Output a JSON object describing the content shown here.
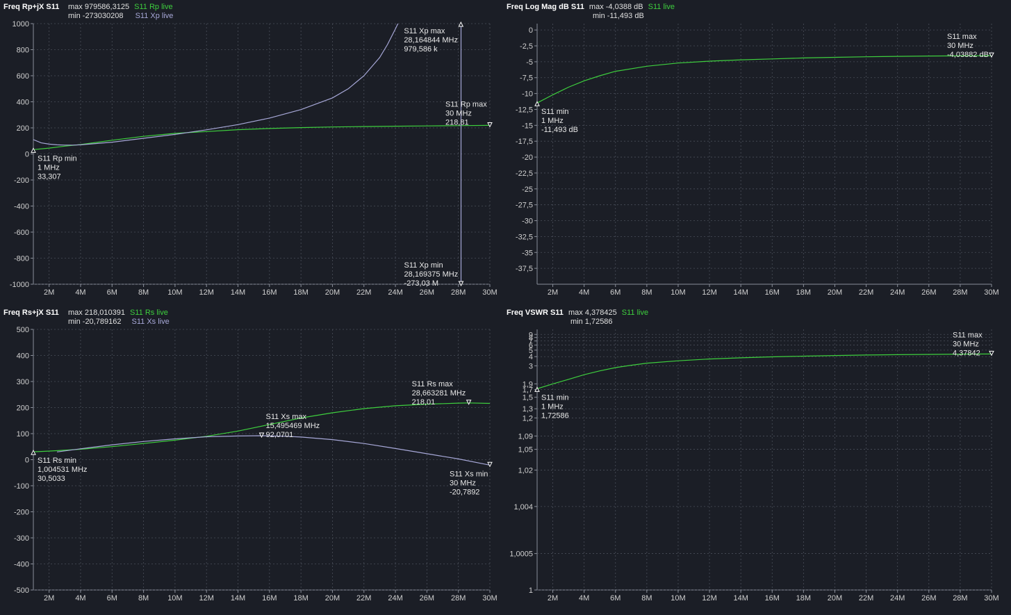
{
  "chart_data": [
    {
      "type": "line",
      "title": "Freq Rp+jX S11",
      "max_text": "max 979586,3125",
      "min_text": "min -273030208",
      "xlim": [
        1,
        30
      ],
      "ylim": [
        -1000,
        1000
      ],
      "y_ticks": [
        {
          "v": 1000,
          "l": "1000"
        },
        {
          "v": 800,
          "l": "800"
        },
        {
          "v": 600,
          "l": "600"
        },
        {
          "v": 400,
          "l": "400"
        },
        {
          "v": 200,
          "l": "200"
        },
        {
          "v": 0,
          "l": "0"
        },
        {
          "v": -200,
          "l": "-200"
        },
        {
          "v": -400,
          "l": "-400"
        },
        {
          "v": -600,
          "l": "-600"
        },
        {
          "v": -800,
          "l": "-800"
        },
        {
          "v": -1000,
          "l": "-1000"
        }
      ],
      "x_ticks": [
        {
          "v": 2,
          "l": "2M"
        },
        {
          "v": 4,
          "l": "4M"
        },
        {
          "v": 6,
          "l": "6M"
        },
        {
          "v": 8,
          "l": "8M"
        },
        {
          "v": 10,
          "l": "10M"
        },
        {
          "v": 12,
          "l": "12M"
        },
        {
          "v": 14,
          "l": "14M"
        },
        {
          "v": 16,
          "l": "16M"
        },
        {
          "v": 18,
          "l": "18M"
        },
        {
          "v": 20,
          "l": "20M"
        },
        {
          "v": 22,
          "l": "22M"
        },
        {
          "v": 24,
          "l": "24M"
        },
        {
          "v": 26,
          "l": "26M"
        },
        {
          "v": 28,
          "l": "28M"
        },
        {
          "v": 30,
          "l": "30M"
        }
      ],
      "series": [
        {
          "name": "S11 Rp live",
          "color": "#3ecf3e",
          "x": [
            1,
            2,
            3,
            4,
            6,
            8,
            10,
            12,
            14,
            16,
            18,
            20,
            22,
            24,
            26,
            28,
            30
          ],
          "y": [
            33,
            45,
            60,
            72,
            105,
            135,
            158,
            172,
            186,
            195,
            202,
            207,
            210,
            213,
            215,
            217,
            219
          ]
        },
        {
          "name": "S11 Xp live",
          "color": "#a7a8d8",
          "x": [
            1,
            1.5,
            2,
            2.5,
            3,
            3.5,
            4,
            6,
            8,
            10,
            12,
            14,
            16,
            18,
            20,
            21,
            22,
            23,
            23.5,
            24,
            24.2,
            24.4
          ],
          "y": [
            110,
            85,
            75,
            70,
            68,
            68,
            70,
            90,
            120,
            150,
            185,
            225,
            275,
            340,
            430,
            500,
            600,
            740,
            840,
            960,
            1010,
            1080
          ]
        },
        {
          "name": "",
          "color": "#a7a8d8",
          "x": [
            28.17,
            28.17
          ],
          "y": [
            -1000,
            1000
          ]
        }
      ],
      "markers": [
        {
          "label": "S11 Rp min",
          "f": "1 MHz",
          "v": "33,307",
          "x": 1,
          "y": 33,
          "dir": "up",
          "tx": 6,
          "ty": 6
        },
        {
          "label": "S11 Rp max",
          "f": "30 MHz",
          "v": "218,81",
          "x": 30,
          "y": 219,
          "dir": "down",
          "tx": -64,
          "ty": -37
        },
        {
          "label": "S11 Xp max",
          "f": "28,164844 MHz",
          "v": "979,586 k",
          "x": 28.16,
          "y": 1000,
          "dir": "up",
          "tx": -82,
          "ty": 4
        },
        {
          "label": "S11 Xp min",
          "f": "28,169375 MHz",
          "v": "-273,03 M",
          "x": 28.17,
          "y": -1000,
          "dir": "down",
          "tx": -82,
          "ty": -34
        }
      ]
    },
    {
      "type": "line",
      "title": "Freq Log Mag dB S11",
      "max_text": "max -4,0388 dB",
      "min_text": "min -11,493 dB",
      "xlim": [
        1,
        30
      ],
      "ylim": [
        -40,
        1
      ],
      "y_ticks": [
        {
          "v": 0,
          "l": "0"
        },
        {
          "v": -2.5,
          "l": "-2,5"
        },
        {
          "v": -5,
          "l": "-5"
        },
        {
          "v": -7.5,
          "l": "-7,5"
        },
        {
          "v": -10,
          "l": "-10"
        },
        {
          "v": -12.5,
          "l": "-12,5"
        },
        {
          "v": -15,
          "l": "-15"
        },
        {
          "v": -17.5,
          "l": "-17,5"
        },
        {
          "v": -20,
          "l": "-20"
        },
        {
          "v": -22.5,
          "l": "-22,5"
        },
        {
          "v": -25,
          "l": "-25"
        },
        {
          "v": -27.5,
          "l": "-27,5"
        },
        {
          "v": -30,
          "l": "-30"
        },
        {
          "v": -32.5,
          "l": "-32,5"
        },
        {
          "v": -35,
          "l": "-35"
        },
        {
          "v": -37.5,
          "l": "-37,5"
        }
      ],
      "x_ticks": [
        {
          "v": 2,
          "l": "2M"
        },
        {
          "v": 4,
          "l": "4M"
        },
        {
          "v": 6,
          "l": "6M"
        },
        {
          "v": 8,
          "l": "8M"
        },
        {
          "v": 10,
          "l": "10M"
        },
        {
          "v": 12,
          "l": "12M"
        },
        {
          "v": 14,
          "l": "14M"
        },
        {
          "v": 16,
          "l": "16M"
        },
        {
          "v": 18,
          "l": "18M"
        },
        {
          "v": 20,
          "l": "20M"
        },
        {
          "v": 22,
          "l": "22M"
        },
        {
          "v": 24,
          "l": "24M"
        },
        {
          "v": 26,
          "l": "26M"
        },
        {
          "v": 28,
          "l": "28M"
        },
        {
          "v": 30,
          "l": "30M"
        }
      ],
      "series": [
        {
          "name": "S11 live",
          "color": "#3ecf3e",
          "x": [
            1,
            2,
            3,
            4,
            5,
            6,
            8,
            10,
            12,
            14,
            16,
            18,
            20,
            22,
            24,
            26,
            28,
            30
          ],
          "y": [
            -11.49,
            -10.2,
            -9.0,
            -8.0,
            -7.2,
            -6.5,
            -5.7,
            -5.2,
            -4.9,
            -4.7,
            -4.55,
            -4.4,
            -4.3,
            -4.22,
            -4.15,
            -4.1,
            -4.07,
            -4.04
          ]
        }
      ],
      "markers": [
        {
          "label": "S11 min",
          "f": "1 MHz",
          "v": "-11,493 dB",
          "x": 1,
          "y": -11.49,
          "dir": "up",
          "tx": 6,
          "ty": 6
        },
        {
          "label": "S11 max",
          "f": "30 MHz",
          "v": "-4,03882 dB",
          "x": 30,
          "y": -4.04,
          "dir": "down",
          "tx": -64,
          "ty": -34
        }
      ]
    },
    {
      "type": "line",
      "title": "Freq Rs+jX S11",
      "max_text": "max 218,010391",
      "min_text": "min -20,789162",
      "xlim": [
        1,
        30
      ],
      "ylim": [
        -500,
        500
      ],
      "y_ticks": [
        {
          "v": 500,
          "l": "500"
        },
        {
          "v": 400,
          "l": "400"
        },
        {
          "v": 300,
          "l": "300"
        },
        {
          "v": 200,
          "l": "200"
        },
        {
          "v": 100,
          "l": "100"
        },
        {
          "v": 0,
          "l": "0"
        },
        {
          "v": -100,
          "l": "-100"
        },
        {
          "v": -200,
          "l": "-200"
        },
        {
          "v": -300,
          "l": "-300"
        },
        {
          "v": -400,
          "l": "-400"
        },
        {
          "v": -500,
          "l": "-500"
        }
      ],
      "x_ticks": [
        {
          "v": 2,
          "l": "2M"
        },
        {
          "v": 4,
          "l": "4M"
        },
        {
          "v": 6,
          "l": "6M"
        },
        {
          "v": 8,
          "l": "8M"
        },
        {
          "v": 10,
          "l": "10M"
        },
        {
          "v": 12,
          "l": "12M"
        },
        {
          "v": 14,
          "l": "14M"
        },
        {
          "v": 16,
          "l": "16M"
        },
        {
          "v": 18,
          "l": "18M"
        },
        {
          "v": 20,
          "l": "20M"
        },
        {
          "v": 22,
          "l": "22M"
        },
        {
          "v": 24,
          "l": "24M"
        },
        {
          "v": 26,
          "l": "26M"
        },
        {
          "v": 28,
          "l": "28M"
        },
        {
          "v": 30,
          "l": "30M"
        }
      ],
      "series": [
        {
          "name": "S11 Rs live",
          "color": "#3ecf3e",
          "x": [
            1,
            2,
            4,
            6,
            8,
            10,
            12,
            14,
            16,
            18,
            20,
            22,
            24,
            26,
            28,
            28.66,
            30
          ],
          "y": [
            30.5,
            33,
            40,
            50,
            62,
            75,
            90,
            110,
            135,
            160,
            180,
            196,
            207,
            213,
            217,
            218,
            216
          ]
        },
        {
          "name": "S11 Xs live",
          "color": "#a7a8d8",
          "x": [
            2.5,
            4,
            6,
            8,
            10,
            12,
            14,
            15.5,
            17,
            18,
            20,
            22,
            24,
            26,
            28,
            30
          ],
          "y": [
            30,
            42,
            57,
            70,
            80,
            88,
            91,
            92,
            90,
            87,
            77,
            62,
            43,
            23,
            3,
            -20.8
          ]
        }
      ],
      "markers": [
        {
          "label": "S11 Rs min",
          "f": "1,004531 MHz",
          "v": "30,5033",
          "x": 1,
          "y": 30.5,
          "dir": "up",
          "tx": 6,
          "ty": 6
        },
        {
          "label": "S11 Rs max",
          "f": "28,663281 MHz",
          "v": "218,01",
          "x": 28.66,
          "y": 218,
          "dir": "down",
          "tx": -82,
          "ty": -34
        },
        {
          "label": "S11 Xs max",
          "f": "15,495469 MHz",
          "v": "92,0701",
          "x": 15.5,
          "y": 92,
          "dir": "down",
          "tx": 6,
          "ty": -34
        },
        {
          "label": "S11 Xs min",
          "f": "30 MHz",
          "v": "-20,7892",
          "x": 30,
          "y": -20.8,
          "dir": "down",
          "tx": -58,
          "ty": 6
        }
      ]
    },
    {
      "type": "line",
      "title": "Freq VSWR S11",
      "max_text": "max 4,378425",
      "min_text": "min 1,72586",
      "xlim": [
        1,
        30
      ],
      "ylim": [
        1,
        11
      ],
      "yscale": "log(vswr-1)",
      "y_ticks": [
        {
          "v": 9,
          "l": "9"
        },
        {
          "v": 8,
          "l": "8"
        },
        {
          "v": 7,
          "l": "7"
        },
        {
          "v": 6,
          "l": "6"
        },
        {
          "v": 5,
          "l": "5"
        },
        {
          "v": 4,
          "l": "4"
        },
        {
          "v": 3,
          "l": "3"
        },
        {
          "v": 1.9,
          "l": "1,9"
        },
        {
          "v": 1.7,
          "l": "1,7"
        },
        {
          "v": 1.5,
          "l": "1,5"
        },
        {
          "v": 1.3,
          "l": "1,3"
        },
        {
          "v": 1.2,
          "l": "1,2"
        },
        {
          "v": 1.09,
          "l": "1,09"
        },
        {
          "v": 1.05,
          "l": "1,05"
        },
        {
          "v": 1.02,
          "l": "1,02"
        },
        {
          "v": 1.004,
          "l": "1,004"
        },
        {
          "v": 1.0005,
          "l": "1,0005"
        },
        {
          "v": 1,
          "l": "1"
        }
      ],
      "x_ticks": [
        {
          "v": 2,
          "l": "2M"
        },
        {
          "v": 4,
          "l": "4M"
        },
        {
          "v": 6,
          "l": "6M"
        },
        {
          "v": 8,
          "l": "8M"
        },
        {
          "v": 10,
          "l": "10M"
        },
        {
          "v": 12,
          "l": "12M"
        },
        {
          "v": 14,
          "l": "14M"
        },
        {
          "v": 16,
          "l": "16M"
        },
        {
          "v": 18,
          "l": "18M"
        },
        {
          "v": 20,
          "l": "20M"
        },
        {
          "v": 22,
          "l": "22M"
        },
        {
          "v": 24,
          "l": "24M"
        },
        {
          "v": 26,
          "l": "26M"
        },
        {
          "v": 28,
          "l": "28M"
        },
        {
          "v": 30,
          "l": "30M"
        }
      ],
      "series": [
        {
          "name": "S11 live",
          "color": "#3ecf3e",
          "x": [
            1,
            2,
            3,
            4,
            5,
            6,
            7,
            8,
            10,
            12,
            14,
            16,
            18,
            20,
            22,
            24,
            26,
            28,
            30
          ],
          "y": [
            1.726,
            1.9,
            2.1,
            2.35,
            2.6,
            2.85,
            3.05,
            3.25,
            3.5,
            3.7,
            3.85,
            3.97,
            4.07,
            4.15,
            4.22,
            4.27,
            4.31,
            4.35,
            4.378
          ]
        }
      ],
      "markers": [
        {
          "label": "S11 min",
          "f": "1 MHz",
          "v": "1,72586",
          "x": 1,
          "y": 1.726,
          "dir": "up",
          "tx": 6,
          "ty": 6
        },
        {
          "label": "S11 max",
          "f": "30 MHz",
          "v": "4,37842",
          "x": 30,
          "y": 4.378,
          "dir": "down",
          "tx": -56,
          "ty": -34
        }
      ]
    }
  ]
}
